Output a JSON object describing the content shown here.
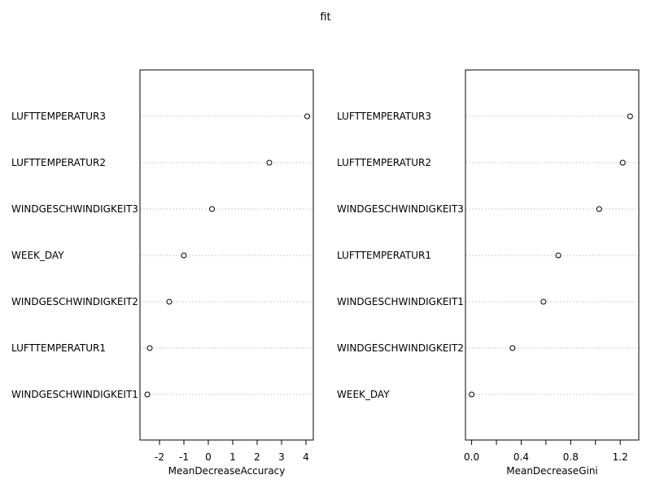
{
  "chart_data": {
    "title": "fit",
    "panels": [
      {
        "type": "scatter",
        "xlabel": "MeanDecreaseAccuracy",
        "xlim": [
          -2.8,
          4.3
        ],
        "xticks": [
          {
            "value": -2,
            "label": "-2"
          },
          {
            "value": -1,
            "label": "-1"
          },
          {
            "value": 0,
            "label": "0"
          },
          {
            "value": 1,
            "label": "1"
          },
          {
            "value": 2,
            "label": "2"
          },
          {
            "value": 3,
            "label": "3"
          },
          {
            "value": 4,
            "label": "4"
          }
        ],
        "categories": [
          "LUFTTEMPERATUR3",
          "LUFTTEMPERATUR2",
          "WINDGESCHWINDIGKEIT3",
          "WEEK_DAY",
          "WINDGESCHWINDIGKEIT2",
          "LUFTTEMPERATUR1",
          "WINDGESCHWINDIGKEIT1"
        ],
        "values": [
          4.05,
          2.5,
          0.15,
          -1.0,
          -1.6,
          -2.4,
          -2.5
        ],
        "grid": true
      },
      {
        "type": "scatter",
        "xlabel": "MeanDecreaseGini",
        "xlim": [
          -0.05,
          1.35
        ],
        "xticks": [
          {
            "value": 0.0,
            "label": "0.0"
          },
          {
            "value": 0.2,
            "label": ""
          },
          {
            "value": 0.4,
            "label": "0.4"
          },
          {
            "value": 0.6,
            "label": ""
          },
          {
            "value": 0.8,
            "label": "0.8"
          },
          {
            "value": 1.0,
            "label": ""
          },
          {
            "value": 1.2,
            "label": "1.2"
          }
        ],
        "categories": [
          "LUFTTEMPERATUR3",
          "LUFTTEMPERATUR2",
          "WINDGESCHWINDIGKEIT3",
          "LUFTTEMPERATUR1",
          "WINDGESCHWINDIGKEIT1",
          "WINDGESCHWINDIGKEIT2",
          "WEEK_DAY"
        ],
        "values": [
          1.28,
          1.22,
          1.03,
          0.7,
          0.58,
          0.33,
          0.0
        ],
        "grid": true
      }
    ]
  }
}
